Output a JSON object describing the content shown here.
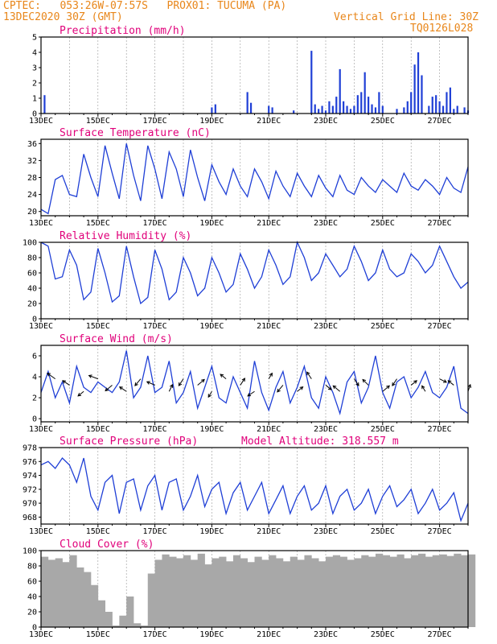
{
  "header": {
    "line1": "CPTEC:   053:26W-07:57S   PROX01: TUCUMA (PA)",
    "line2_left": "13DEC2020 30Z (GMT)",
    "line2_right": "Vertical Grid Line: 30Z",
    "line3_right": "TQ0126L028"
  },
  "colors": {
    "header": "#e8861a",
    "title": "#e0007a",
    "series": "#1f3fd6",
    "cloud": "#a8a8a8"
  },
  "chart_data": [
    {
      "type": "bar",
      "title": "Precipitation (mm/h)",
      "ylim": [
        0,
        5
      ],
      "yticks": [
        "0",
        "1",
        "2",
        "3",
        "4",
        "5"
      ],
      "xticks": [
        "13DEC",
        "15DEC",
        "17DEC",
        "19DEC",
        "21DEC",
        "23DEC",
        "25DEC",
        "27DEC"
      ],
      "x_unit": "hours since 13DEC 06Z",
      "x": [
        3,
        6,
        9,
        12,
        15,
        18,
        21,
        24,
        27,
        30,
        33,
        36,
        39,
        42,
        45,
        48,
        51,
        54,
        57,
        60,
        63,
        66,
        69,
        72,
        75,
        78,
        81,
        84,
        87,
        90,
        93,
        96,
        99,
        102,
        105,
        108,
        111,
        114,
        117,
        120,
        123,
        126,
        129,
        132,
        135,
        138,
        141,
        144,
        147,
        150,
        153,
        156,
        159,
        162,
        165,
        168,
        171,
        174,
        177,
        180,
        183,
        186,
        189,
        192,
        195,
        198,
        201,
        204,
        207,
        210,
        213,
        216,
        219,
        222,
        225,
        228,
        231,
        234,
        237,
        240,
        243,
        246,
        249,
        252,
        255,
        258,
        261,
        264,
        267,
        270,
        273,
        276,
        279,
        282,
        285,
        288,
        291,
        294,
        297,
        300,
        303,
        306,
        309,
        312,
        315,
        318,
        321,
        324,
        327,
        330,
        333,
        336,
        339,
        342,
        345,
        348,
        351,
        354,
        357,
        360
      ],
      "values": [
        1.2,
        0,
        0,
        0,
        0,
        0,
        0,
        0,
        0,
        0,
        0,
        0,
        0,
        0,
        0,
        0,
        0,
        0,
        0,
        0,
        0,
        0,
        0,
        0,
        0,
        0,
        0,
        0,
        0,
        0,
        0,
        0,
        0,
        0,
        0,
        0,
        0,
        0,
        0,
        0,
        0,
        0,
        0,
        0,
        0,
        0,
        0,
        0.4,
        0.6,
        0,
        0,
        0,
        0,
        0,
        0,
        0,
        0,
        1.4,
        0.7,
        0,
        0,
        0,
        0,
        0.5,
        0.4,
        0,
        0,
        0,
        0,
        0,
        0.2,
        0,
        0,
        0,
        0,
        4.1,
        0.6,
        0.3,
        0.5,
        0.2,
        0.8,
        0.5,
        1.1,
        2.9,
        0.8,
        0.5,
        0.3,
        0.5,
        1.2,
        1.4,
        2.7,
        1.1,
        0.6,
        0.4,
        1.4,
        0.5,
        0,
        0,
        0,
        0.3,
        0,
        0.4,
        0.8,
        1.4,
        3.2,
        4.0,
        2.5,
        0,
        0.5,
        1.1,
        1.2,
        0.8,
        0.5,
        1.4,
        1.7,
        0.3,
        0.5,
        0,
        0.4,
        0.2
      ]
    },
    {
      "type": "line",
      "title": "Surface Temperature (nC)",
      "ylim": [
        19,
        37
      ],
      "yticks": [
        "20",
        "24",
        "28",
        "32",
        "36"
      ],
      "xticks": [
        "13DEC",
        "15DEC",
        "17DEC",
        "19DEC",
        "21DEC",
        "23DEC",
        "25DEC",
        "27DEC"
      ],
      "x_unit": "hours since 13DEC 06Z",
      "x": [
        0,
        6,
        12,
        18,
        24,
        30,
        36,
        42,
        48,
        54,
        60,
        66,
        72,
        78,
        84,
        90,
        96,
        102,
        108,
        114,
        120,
        126,
        132,
        138,
        144,
        150,
        156,
        162,
        168,
        174,
        180,
        186,
        192,
        198,
        204,
        210,
        216,
        222,
        228,
        234,
        240,
        246,
        252,
        258,
        264,
        270,
        276,
        282,
        288,
        294,
        300,
        306,
        312,
        318,
        324,
        330,
        336,
        342,
        348,
        354,
        360
      ],
      "series": [
        {
          "values": [
            20.5,
            19.5,
            27.5,
            28.5,
            24,
            23.5,
            33.5,
            28,
            23.5,
            35.5,
            29,
            23,
            36,
            28.5,
            22.5,
            35.5,
            30,
            23,
            34,
            30,
            23.5,
            34.5,
            28,
            22.5,
            31,
            27,
            24,
            30,
            26,
            23.5,
            30,
            27,
            23,
            29.5,
            26,
            23.5,
            29,
            26,
            23.5,
            28.5,
            25.5,
            23.5,
            28.5,
            25,
            24,
            28,
            26,
            24.5,
            27.5,
            26,
            24.5,
            29,
            26,
            25,
            27.5,
            26,
            24,
            28,
            25.5,
            24.5,
            30.5
          ]
        }
      ]
    },
    {
      "type": "line",
      "title": "Relative Humidity (%)",
      "ylim": [
        0,
        100
      ],
      "yticks": [
        "0",
        "20",
        "40",
        "60",
        "80",
        "100"
      ],
      "xticks": [
        "13DEC",
        "15DEC",
        "17DEC",
        "19DEC",
        "21DEC",
        "23DEC",
        "25DEC",
        "27DEC"
      ],
      "x_unit": "hours since 13DEC 06Z",
      "x": [
        0,
        6,
        12,
        18,
        24,
        30,
        36,
        42,
        48,
        54,
        60,
        66,
        72,
        78,
        84,
        90,
        96,
        102,
        108,
        114,
        120,
        126,
        132,
        138,
        144,
        150,
        156,
        162,
        168,
        174,
        180,
        186,
        192,
        198,
        204,
        210,
        216,
        222,
        228,
        234,
        240,
        246,
        252,
        258,
        264,
        270,
        276,
        282,
        288,
        294,
        300,
        306,
        312,
        318,
        324,
        330,
        336,
        342,
        348,
        354,
        360
      ],
      "series": [
        {
          "values": [
            100,
            95,
            52,
            55,
            90,
            70,
            25,
            35,
            92,
            60,
            22,
            30,
            95,
            55,
            20,
            28,
            90,
            65,
            25,
            35,
            80,
            60,
            30,
            40,
            80,
            60,
            35,
            45,
            85,
            65,
            40,
            55,
            90,
            70,
            45,
            55,
            100,
            80,
            50,
            60,
            85,
            70,
            55,
            65,
            95,
            75,
            50,
            60,
            90,
            65,
            55,
            60,
            85,
            75,
            60,
            70,
            95,
            75,
            55,
            40,
            48
          ]
        }
      ]
    },
    {
      "type": "line",
      "title": "Surface Wind (m/s)",
      "ylim": [
        -0.3,
        7
      ],
      "yticks": [
        "0",
        "2",
        "4",
        "6"
      ],
      "xticks": [
        "13DEC",
        "15DEC",
        "17DEC",
        "19DEC",
        "21DEC",
        "23DEC",
        "25DEC",
        "27DEC"
      ],
      "x_unit": "hours since 13DEC 06Z",
      "x": [
        0,
        6,
        12,
        18,
        24,
        30,
        36,
        42,
        48,
        54,
        60,
        66,
        72,
        78,
        84,
        90,
        96,
        102,
        108,
        114,
        120,
        126,
        132,
        138,
        144,
        150,
        156,
        162,
        168,
        174,
        180,
        186,
        192,
        198,
        204,
        210,
        216,
        222,
        228,
        234,
        240,
        246,
        252,
        258,
        264,
        270,
        276,
        282,
        288,
        294,
        300,
        306,
        312,
        318,
        324,
        330,
        336,
        342,
        348,
        354,
        360
      ],
      "series": [
        {
          "values": [
            2.5,
            4.5,
            2,
            3.5,
            1.5,
            5,
            3,
            2.5,
            3.5,
            3,
            2.5,
            3.5,
            6.5,
            2,
            3,
            6,
            2.5,
            3,
            5.5,
            1.5,
            2.5,
            4.5,
            1,
            3,
            5,
            2,
            1.5,
            4,
            2.5,
            1,
            5.5,
            2.5,
            0.8,
            3,
            4.5,
            1.5,
            3,
            5,
            2,
            1,
            4,
            2.5,
            0.5,
            3.5,
            4.5,
            1.5,
            3,
            6,
            2.5,
            1,
            3.5,
            4,
            2,
            3,
            4.5,
            2.5,
            2,
            3,
            5,
            1,
            0.5
          ]
        }
      ],
      "wind_arrows": {
        "x": [
          12,
          24,
          36,
          48,
          60,
          72,
          84,
          96,
          108,
          120,
          132,
          144,
          156,
          168,
          180,
          192,
          204,
          216,
          228,
          240,
          252,
          264,
          276,
          288,
          300,
          312,
          324,
          336,
          348,
          360
        ],
        "u": [
          -0.7,
          -0.6,
          -0.5,
          -0.8,
          -0.6,
          -0.6,
          -0.5,
          -0.7,
          0.3,
          -0.4,
          0.6,
          -0.3,
          -0.5,
          0.4,
          -0.6,
          0.3,
          -0.5,
          0.5,
          -0.4,
          0.5,
          -0.6,
          0.4,
          -0.5,
          0.6,
          -0.4,
          0.5,
          -0.3,
          0.6,
          -0.5,
          0.2
        ],
        "v": [
          0.5,
          0.4,
          -0.4,
          0.3,
          -0.5,
          0.4,
          -0.6,
          0.3,
          0.6,
          -0.6,
          0.5,
          -0.5,
          0.4,
          0.6,
          -0.4,
          0.5,
          -0.6,
          0.4,
          0.6,
          -0.4,
          0.5,
          -0.6,
          0.5,
          0.5,
          -0.6,
          0.4,
          0.5,
          -0.3,
          0.4,
          0.6
        ]
      }
    },
    {
      "type": "line",
      "title": "Surface Pressure (hPa)",
      "annotation": "Model Altitude: 318.557 m",
      "ylim": [
        967,
        978
      ],
      "yticks": [
        "968",
        "970",
        "972",
        "974",
        "976",
        "978"
      ],
      "xticks": [
        "13DEC",
        "15DEC",
        "17DEC",
        "19DEC",
        "21DEC",
        "23DEC",
        "25DEC",
        "27DEC"
      ],
      "x_unit": "hours since 13DEC 06Z",
      "x": [
        0,
        6,
        12,
        18,
        24,
        30,
        36,
        42,
        48,
        54,
        60,
        66,
        72,
        78,
        84,
        90,
        96,
        102,
        108,
        114,
        120,
        126,
        132,
        138,
        144,
        150,
        156,
        162,
        168,
        174,
        180,
        186,
        192,
        198,
        204,
        210,
        216,
        222,
        228,
        234,
        240,
        246,
        252,
        258,
        264,
        270,
        276,
        282,
        288,
        294,
        300,
        306,
        312,
        318,
        324,
        330,
        336,
        342,
        348,
        354,
        360
      ],
      "series": [
        {
          "values": [
            975.5,
            976,
            975,
            976.5,
            975.5,
            973,
            976.5,
            971,
            969,
            973,
            974,
            968.5,
            973,
            973.5,
            969,
            972.5,
            974,
            969,
            973,
            973.5,
            969,
            971,
            974,
            969.5,
            972,
            973,
            968.5,
            971.5,
            973,
            969,
            971,
            973,
            968.5,
            970.5,
            972.5,
            968.5,
            971,
            972.5,
            969,
            970,
            972.5,
            968.5,
            971,
            972,
            969,
            970,
            972,
            968.5,
            971,
            972.5,
            969.5,
            970.5,
            972,
            968.5,
            970,
            972,
            969,
            970,
            971.5,
            967.5,
            970
          ]
        }
      ]
    },
    {
      "type": "bar",
      "title": "Cloud Cover (%)",
      "ylim": [
        0,
        100
      ],
      "yticks": [
        "0",
        "20",
        "40",
        "60",
        "80",
        "100"
      ],
      "xticks": [
        "13DEC",
        "15DEC",
        "17DEC",
        "19DEC",
        "21DEC",
        "23DEC",
        "25DEC",
        "27DEC"
      ],
      "x_unit": "hours since 13DEC 06Z",
      "x": [
        0,
        6,
        12,
        18,
        24,
        30,
        36,
        42,
        48,
        54,
        60,
        66,
        72,
        78,
        84,
        90,
        96,
        102,
        108,
        114,
        120,
        126,
        132,
        138,
        144,
        150,
        156,
        162,
        168,
        174,
        180,
        186,
        192,
        198,
        204,
        210,
        216,
        222,
        228,
        234,
        240,
        246,
        252,
        258,
        264,
        270,
        276,
        282,
        288,
        294,
        300,
        306,
        312,
        318,
        324,
        330,
        336,
        342,
        348,
        354,
        360
      ],
      "values": [
        92,
        88,
        90,
        85,
        94,
        78,
        72,
        55,
        35,
        20,
        2,
        15,
        40,
        5,
        2,
        70,
        88,
        95,
        92,
        90,
        94,
        88,
        96,
        82,
        90,
        92,
        86,
        94,
        90,
        85,
        92,
        88,
        94,
        90,
        86,
        92,
        88,
        94,
        90,
        86,
        92,
        94,
        92,
        88,
        90,
        94,
        92,
        96,
        94,
        92,
        95,
        90,
        94,
        96,
        92,
        94,
        95,
        93,
        96,
        94,
        95
      ]
    }
  ]
}
